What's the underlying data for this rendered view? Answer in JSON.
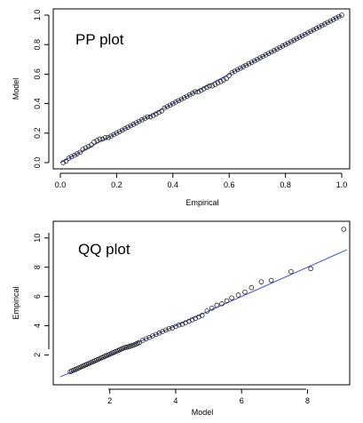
{
  "chart_data": [
    {
      "type": "scatter",
      "title": "PP plot",
      "xlabel": "Empirical",
      "ylabel": "Model",
      "xlim": [
        0,
        1
      ],
      "ylim": [
        0,
        1
      ],
      "xticks": [
        "0.0",
        "0.2",
        "0.4",
        "0.6",
        "0.8",
        "1.0"
      ],
      "yticks": [
        "0.0",
        "0.2",
        "0.4",
        "0.6",
        "0.8",
        "1.0"
      ],
      "reference_line": {
        "from": [
          0,
          0
        ],
        "to": [
          1,
          1
        ],
        "color": "#3d55d6"
      },
      "grid": false,
      "point_marker": "open-circle",
      "x": [
        0.01,
        0.02,
        0.03,
        0.04,
        0.05,
        0.06,
        0.07,
        0.08,
        0.09,
        0.1,
        0.11,
        0.12,
        0.13,
        0.14,
        0.15,
        0.16,
        0.17,
        0.18,
        0.19,
        0.2,
        0.21,
        0.22,
        0.23,
        0.24,
        0.25,
        0.26,
        0.27,
        0.28,
        0.29,
        0.3,
        0.31,
        0.32,
        0.33,
        0.34,
        0.35,
        0.36,
        0.37,
        0.38,
        0.39,
        0.4,
        0.41,
        0.42,
        0.43,
        0.44,
        0.45,
        0.46,
        0.47,
        0.48,
        0.49,
        0.5,
        0.51,
        0.52,
        0.53,
        0.54,
        0.55,
        0.56,
        0.57,
        0.58,
        0.59,
        0.6,
        0.61,
        0.62,
        0.63,
        0.64,
        0.65,
        0.66,
        0.67,
        0.68,
        0.69,
        0.7,
        0.71,
        0.72,
        0.73,
        0.74,
        0.75,
        0.76,
        0.77,
        0.78,
        0.79,
        0.8,
        0.81,
        0.82,
        0.83,
        0.84,
        0.85,
        0.86,
        0.87,
        0.88,
        0.89,
        0.9,
        0.91,
        0.92,
        0.93,
        0.94,
        0.95,
        0.96,
        0.97,
        0.98,
        0.99,
        1.0
      ],
      "y": [
        0.0,
        0.01,
        0.03,
        0.04,
        0.05,
        0.06,
        0.07,
        0.09,
        0.1,
        0.11,
        0.12,
        0.14,
        0.15,
        0.16,
        0.16,
        0.17,
        0.17,
        0.18,
        0.19,
        0.2,
        0.21,
        0.22,
        0.23,
        0.24,
        0.25,
        0.26,
        0.27,
        0.28,
        0.29,
        0.3,
        0.31,
        0.31,
        0.32,
        0.33,
        0.34,
        0.35,
        0.37,
        0.38,
        0.39,
        0.4,
        0.41,
        0.42,
        0.43,
        0.44,
        0.45,
        0.46,
        0.47,
        0.48,
        0.48,
        0.49,
        0.5,
        0.51,
        0.52,
        0.52,
        0.53,
        0.54,
        0.55,
        0.56,
        0.57,
        0.59,
        0.61,
        0.62,
        0.63,
        0.64,
        0.65,
        0.66,
        0.67,
        0.68,
        0.69,
        0.7,
        0.71,
        0.72,
        0.73,
        0.74,
        0.75,
        0.76,
        0.77,
        0.78,
        0.79,
        0.8,
        0.81,
        0.82,
        0.83,
        0.84,
        0.85,
        0.86,
        0.87,
        0.88,
        0.89,
        0.9,
        0.91,
        0.92,
        0.93,
        0.94,
        0.95,
        0.96,
        0.97,
        0.98,
        0.99,
        1.0
      ]
    },
    {
      "type": "scatter",
      "title": "QQ plot",
      "xlabel": "Model",
      "ylabel": "Empirical",
      "xlim": [
        0.5,
        9.2
      ],
      "ylim": [
        0.2,
        10.9
      ],
      "xticks": [
        "2",
        "4",
        "6",
        "8"
      ],
      "yticks": [
        "2",
        "4",
        "6",
        "8",
        "10"
      ],
      "reference_line": {
        "from": [
          0.5,
          0.5
        ],
        "to": [
          9.2,
          9.2
        ],
        "color": "#3d55d6"
      },
      "grid": false,
      "point_marker": "open-circle",
      "x": [
        0.8,
        0.85,
        0.9,
        0.95,
        1.0,
        1.05,
        1.1,
        1.15,
        1.2,
        1.25,
        1.3,
        1.35,
        1.4,
        1.45,
        1.5,
        1.55,
        1.6,
        1.65,
        1.7,
        1.75,
        1.8,
        1.85,
        1.9,
        1.95,
        2.0,
        2.05,
        2.1,
        2.15,
        2.2,
        2.25,
        2.3,
        2.35,
        2.4,
        2.45,
        2.5,
        2.55,
        2.6,
        2.65,
        2.7,
        2.75,
        2.8,
        2.85,
        2.9,
        3.0,
        3.1,
        3.2,
        3.3,
        3.4,
        3.5,
        3.6,
        3.7,
        3.8,
        3.9,
        4.0,
        4.1,
        4.2,
        4.3,
        4.4,
        4.5,
        4.6,
        4.7,
        4.8,
        4.95,
        5.1,
        5.25,
        5.4,
        5.55,
        5.7,
        5.9,
        6.1,
        6.3,
        6.6,
        6.9,
        7.5,
        8.1,
        9.1
      ],
      "y": [
        0.85,
        0.9,
        0.95,
        1.0,
        1.05,
        1.1,
        1.15,
        1.2,
        1.25,
        1.3,
        1.35,
        1.4,
        1.45,
        1.5,
        1.55,
        1.6,
        1.65,
        1.7,
        1.75,
        1.8,
        1.85,
        1.9,
        1.95,
        2.0,
        2.05,
        2.1,
        2.15,
        2.2,
        2.25,
        2.3,
        2.35,
        2.4,
        2.45,
        2.5,
        2.52,
        2.55,
        2.58,
        2.62,
        2.66,
        2.7,
        2.75,
        2.8,
        2.85,
        3.0,
        3.1,
        3.2,
        3.3,
        3.4,
        3.5,
        3.6,
        3.7,
        3.8,
        3.85,
        3.95,
        4.05,
        4.1,
        4.2,
        4.3,
        4.4,
        4.5,
        4.6,
        4.7,
        5.0,
        5.2,
        5.4,
        5.5,
        5.7,
        5.9,
        6.1,
        6.3,
        6.6,
        7.0,
        7.1,
        7.7,
        7.9,
        10.6
      ]
    }
  ]
}
